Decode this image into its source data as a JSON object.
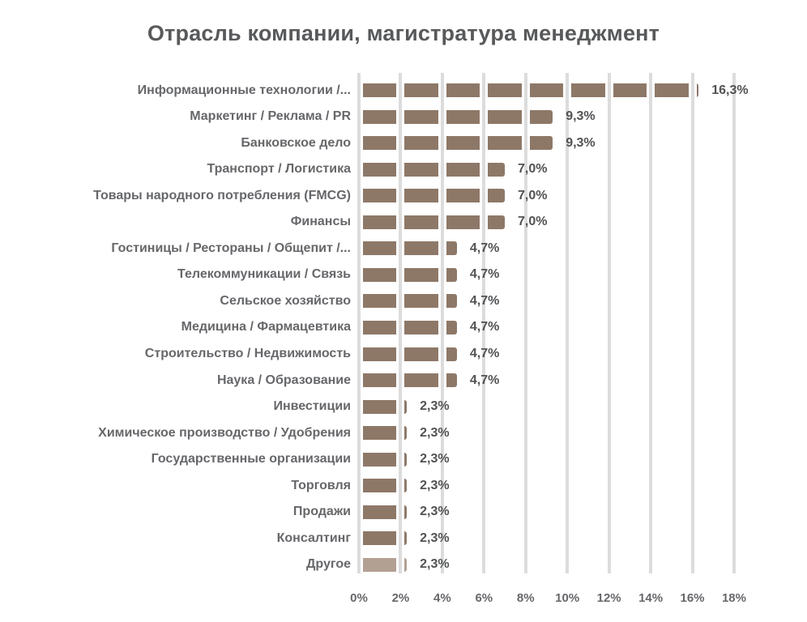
{
  "chart_data": {
    "type": "bar",
    "orientation": "horizontal",
    "title": "Отрасль компании, магистратура менеджмент",
    "categories": [
      "Информационные технологии /...",
      "Маркетинг / Реклама / PR",
      "Банковское дело",
      "Транспорт / Логистика",
      "Товары народного потребления (FMCG)",
      "Финансы",
      "Гостиницы / Рестораны / Общепит /...",
      "Телекоммуникации / Связь",
      "Сельское хозяйство",
      "Медицина / Фармацевтика",
      "Строительство / Недвижимость",
      "Наука / Образование",
      "Инвестиции",
      "Химическое производство / Удобрения",
      "Государственные организации",
      "Торговля",
      "Продажи",
      "Консалтинг",
      "Другое"
    ],
    "values": [
      16.3,
      9.3,
      9.3,
      7.0,
      7.0,
      7.0,
      4.7,
      4.7,
      4.7,
      4.7,
      4.7,
      4.7,
      2.3,
      2.3,
      2.3,
      2.3,
      2.3,
      2.3,
      2.3
    ],
    "value_labels": [
      "16,3%",
      "9,3%",
      "9,3%",
      "7,0%",
      "7,0%",
      "7,0%",
      "4,7%",
      "4,7%",
      "4,7%",
      "4,7%",
      "4,7%",
      "4,7%",
      "2,3%",
      "2,3%",
      "2,3%",
      "2,3%",
      "2,3%",
      "2,3%",
      "2,3%"
    ],
    "x_ticks": [
      "0%",
      "2%",
      "4%",
      "6%",
      "8%",
      "10%",
      "12%",
      "14%",
      "16%",
      "18%"
    ],
    "x_tick_step_pct": 2,
    "xlim": [
      0,
      18
    ],
    "grid": true,
    "legend": "none",
    "colors": {
      "bar": "#8d7868",
      "last_bar": "#b2a093",
      "gridline": "#dcdcdc",
      "title_text": "#58595b",
      "category_text": "#66676a",
      "value_text": "#515254",
      "axis_text": "#66676a",
      "background": "#ffffff"
    }
  }
}
